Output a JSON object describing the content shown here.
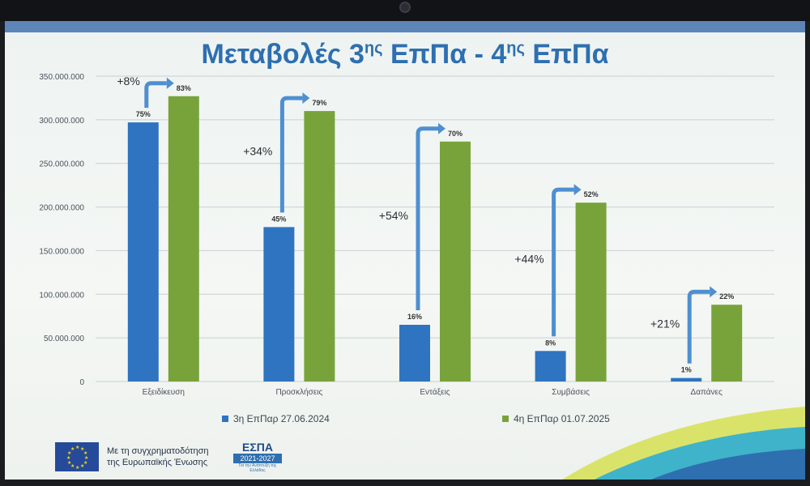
{
  "chart_data": {
    "type": "bar",
    "title": "Μεταβολές 3ης ΕπΠα - 4ης ΕπΠα",
    "title_main": "Μεταβολές 3",
    "title_sup1": "ης",
    "title_mid": " ΕπΠα - 4",
    "title_sup2": "ης",
    "title_end": " ΕπΠα",
    "categories": [
      "Εξειδίκευση",
      "Προσκλήσεις",
      "Εντάξεις",
      "Συμβάσεις",
      "Δαπάνες"
    ],
    "series": [
      {
        "name": "3η ΕπΠαρ 27.06.2024",
        "color": "#2e74c0",
        "values": [
          297000000,
          177000000,
          65000000,
          35000000,
          4000000
        ],
        "labels": [
          "75%",
          "45%",
          "16%",
          "8%",
          "1%"
        ]
      },
      {
        "name": "4η ΕπΠαρ 01.07.2025",
        "color": "#78a33a",
        "values": [
          327000000,
          310000000,
          275000000,
          205000000,
          88000000
        ],
        "labels": [
          "83%",
          "79%",
          "70%",
          "52%",
          "22%"
        ]
      }
    ],
    "changes": [
      "+8%",
      "+34%",
      "+54%",
      "+44%",
      "+21%"
    ],
    "ylim": [
      0,
      350000000
    ],
    "yticks": [
      0,
      50000000,
      100000000,
      150000000,
      200000000,
      250000000,
      300000000,
      350000000
    ],
    "ytick_labels": [
      "0",
      "50.000.000",
      "100.000.000",
      "150.000.000",
      "200.000.000",
      "250.000.000",
      "300.000.000",
      "350.000.000"
    ],
    "grid": true,
    "legend": "bottom"
  },
  "footer": {
    "eu_line1": "Με τη συγχρηματοδότηση",
    "eu_line2": "της Ευρωπαϊκής Ένωσης",
    "espa_name": "ΕΣΠΑ",
    "espa_years": "2021-2027",
    "espa_sub": "Για την Ανάπτυξη της Ελλάδας"
  },
  "colors": {
    "title": "#2e6fb0",
    "arrow": "#4f8fd0",
    "blue": "#2e74c0",
    "green": "#78a33a"
  }
}
